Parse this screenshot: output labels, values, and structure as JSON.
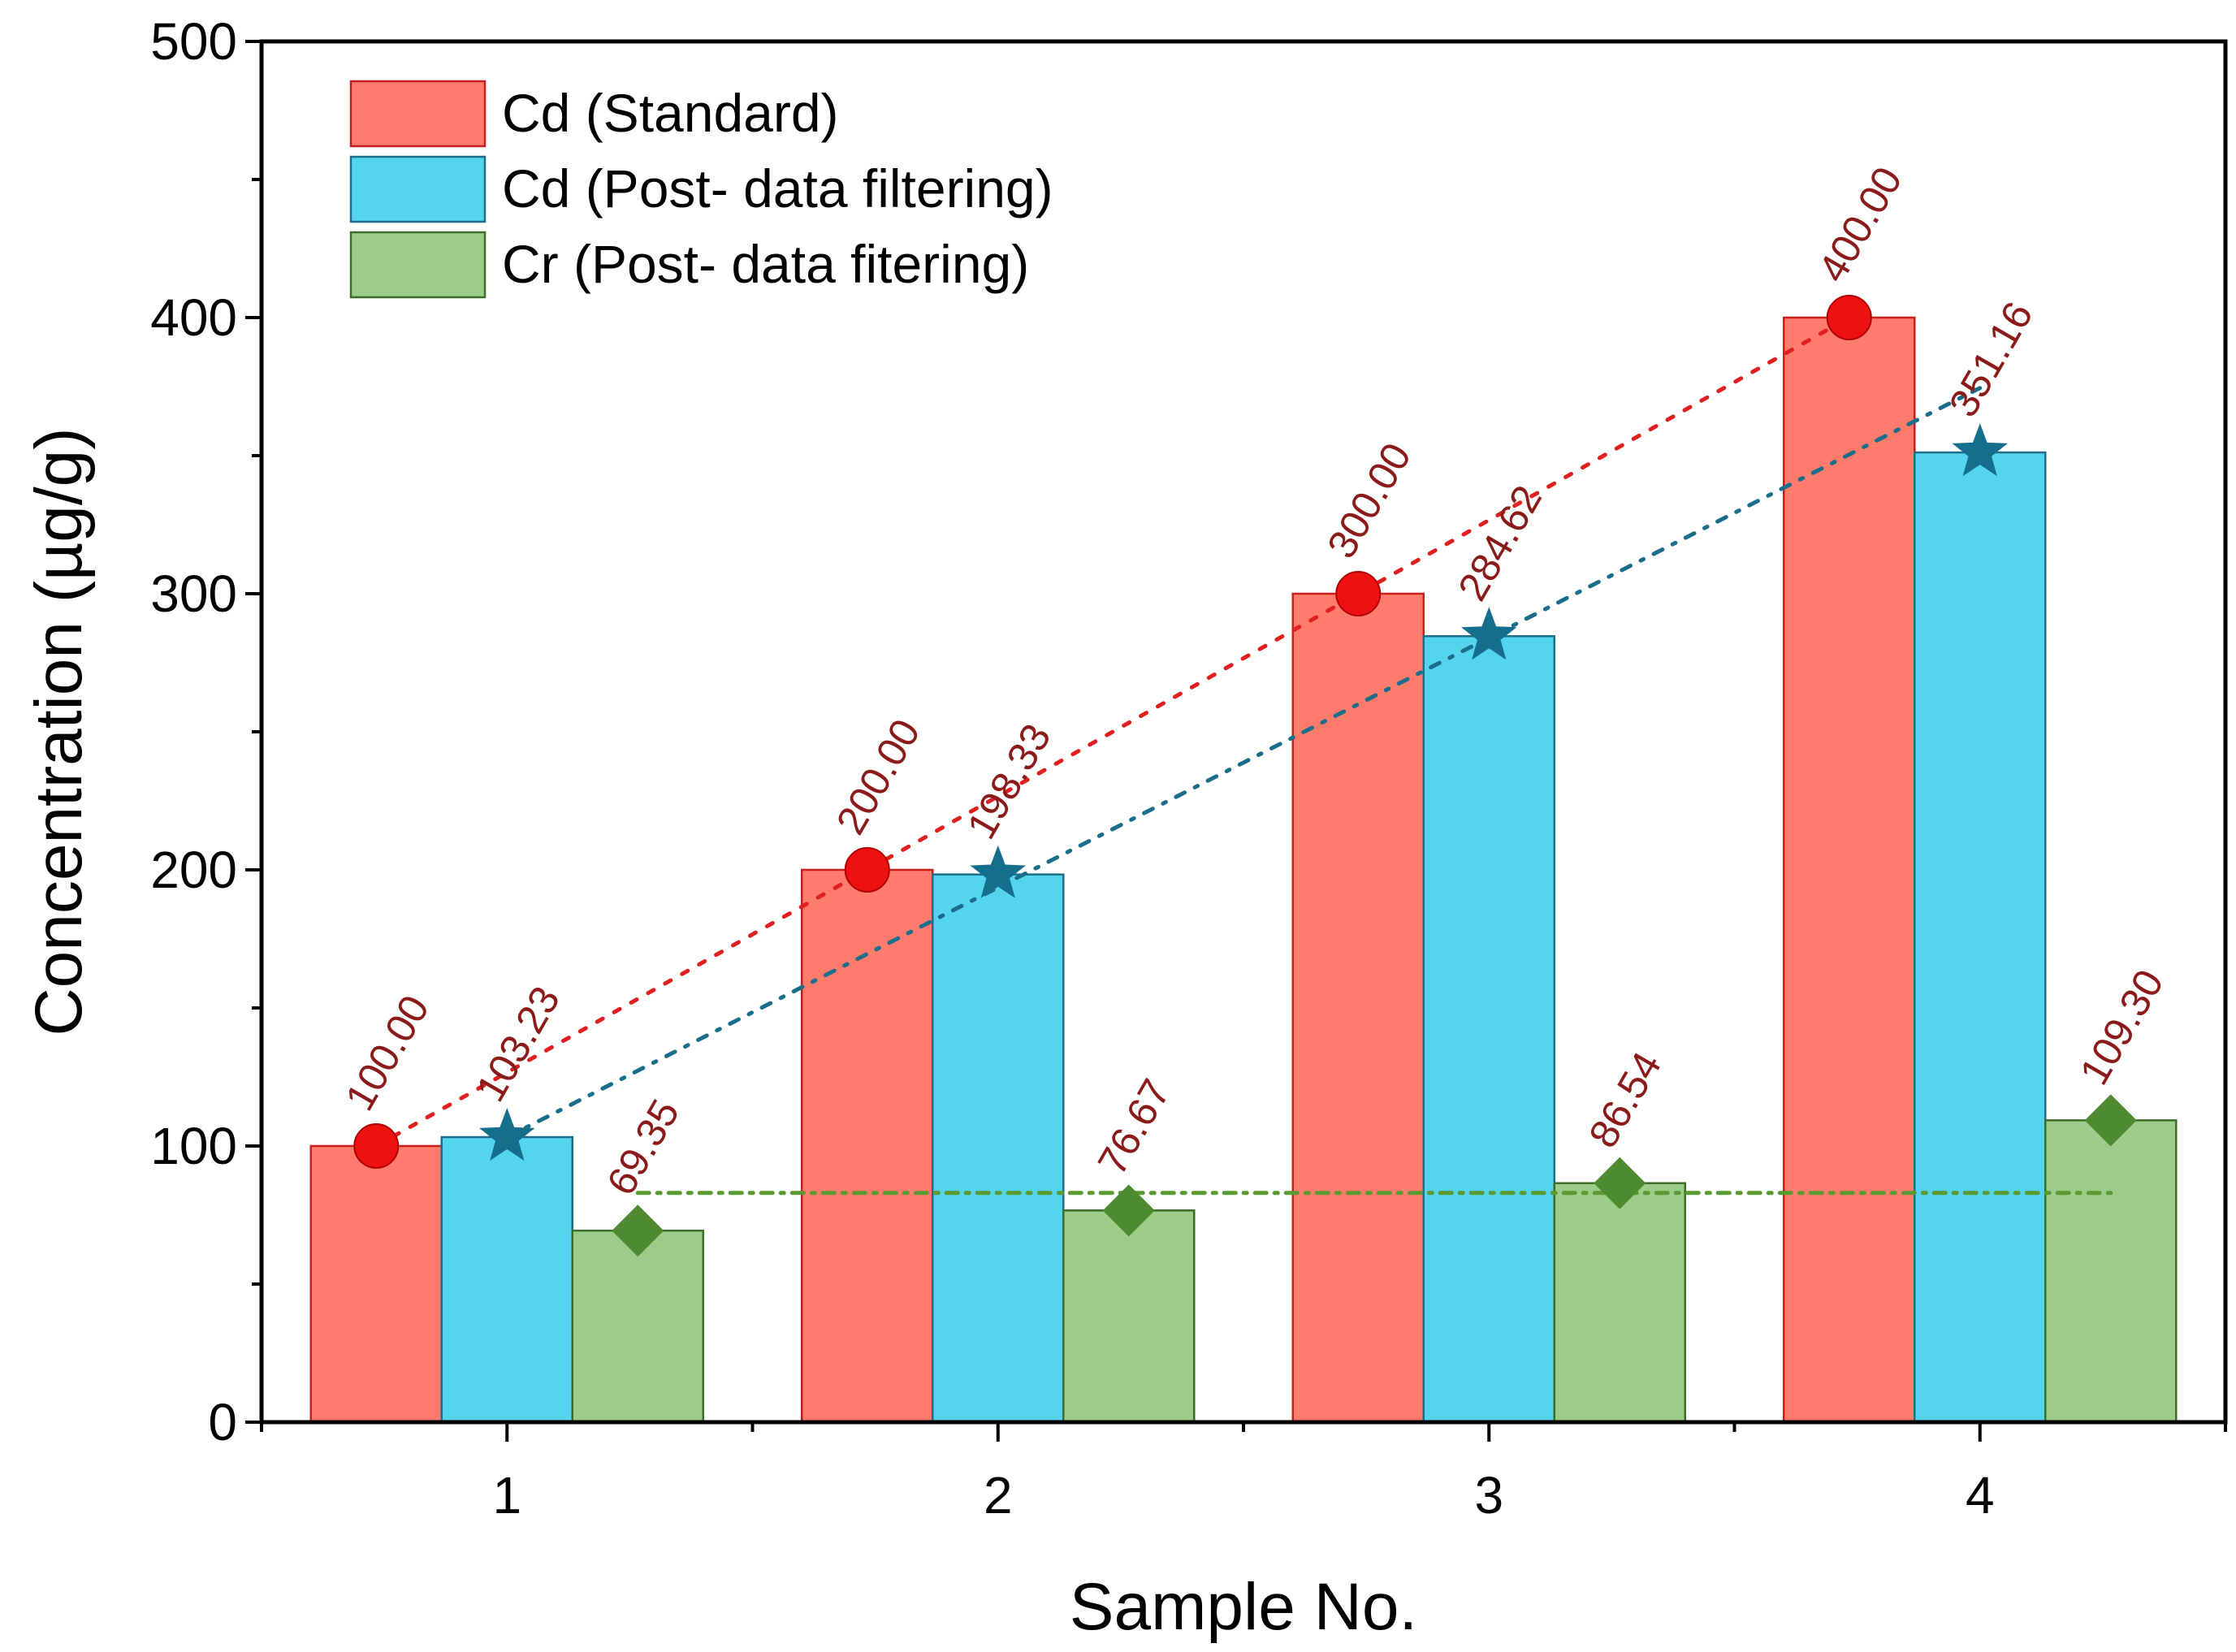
{
  "chart_data": {
    "type": "bar",
    "title": "",
    "xlabel": "Sample No.",
    "ylabel": "Concentration (µg/g)",
    "categories": [
      "1",
      "2",
      "3",
      "4"
    ],
    "ylim": [
      0,
      500
    ],
    "yticks": [
      0,
      100,
      200,
      300,
      400,
      500
    ],
    "series": [
      {
        "name": "Cd (Standard)",
        "values": [
          100.0,
          200.0,
          300.0,
          400.0
        ],
        "labels": [
          "100.00",
          "200.00",
          "300.00",
          "400.00"
        ],
        "color": "#ff7b6b",
        "edge": "#c81e1e",
        "marker": "circle",
        "marker_color": "#ee1111",
        "line_color": "#e02020",
        "fit": [
          100.0,
          400.0
        ]
      },
      {
        "name": "Cd (Post- data filtering)",
        "values": [
          103.23,
          198.33,
          284.62,
          351.16
        ],
        "labels": [
          "103.23",
          "198.33",
          "284.62",
          "351.16"
        ],
        "color": "#55d4ee",
        "edge": "#1e6e8a",
        "marker": "star",
        "marker_color": "#156e8c",
        "line_color": "#1a6e8c",
        "fit": [
          103.2,
          374.5
        ]
      },
      {
        "name": "Cr (Post- data fitering)",
        "values": [
          69.35,
          76.67,
          86.54,
          109.3
        ],
        "labels": [
          "69.35",
          "76.67",
          "86.54",
          "109.30"
        ],
        "color": "#9ccd88",
        "edge": "#3a6e2a",
        "marker": "diamond",
        "marker_color": "#4e8a30",
        "line_color": "#5a9a30",
        "fit": [
          83.0,
          83.0
        ]
      }
    ],
    "legend_position": "top-left",
    "grid": false
  }
}
